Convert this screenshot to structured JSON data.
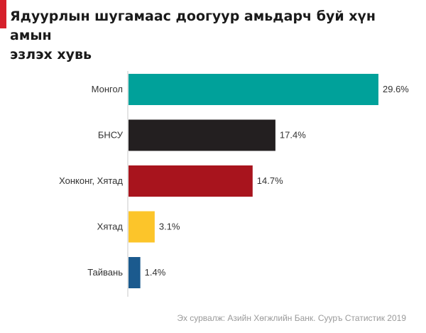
{
  "title_lines": [
    "Ядуурлын шугамаас доогуур амьдарч буй хүн амын",
    "эзлэх хувь"
  ],
  "source": "Эх сурвалж: Азийн Хөгжлийн Банк. Сууръ Статистик 2019",
  "colors": {
    "accent": "#d6202b",
    "axis": "#c8c8c8",
    "label": "#333333"
  },
  "chart_data": {
    "type": "bar",
    "orientation": "horizontal",
    "title": "Ядуурлын шугамаас доогуур амьдарч буй хүн амын эзлэх хувь",
    "categories": [
      "Монгол",
      "БНСУ",
      "Хонконг, Хятад",
      "Хятад",
      "Тайвань"
    ],
    "values": [
      29.6,
      17.4,
      14.7,
      3.1,
      1.4
    ],
    "value_labels": [
      "29.6%",
      "17.4%",
      "14.7%",
      "3.1%",
      "1.4%"
    ],
    "colors": [
      "#00a19a",
      "#231f20",
      "#a8141d",
      "#fcc52a",
      "#1b5a8e"
    ],
    "xlim": [
      0,
      29.6
    ],
    "xlabel": "",
    "ylabel": "",
    "grid": false,
    "legend": false
  }
}
